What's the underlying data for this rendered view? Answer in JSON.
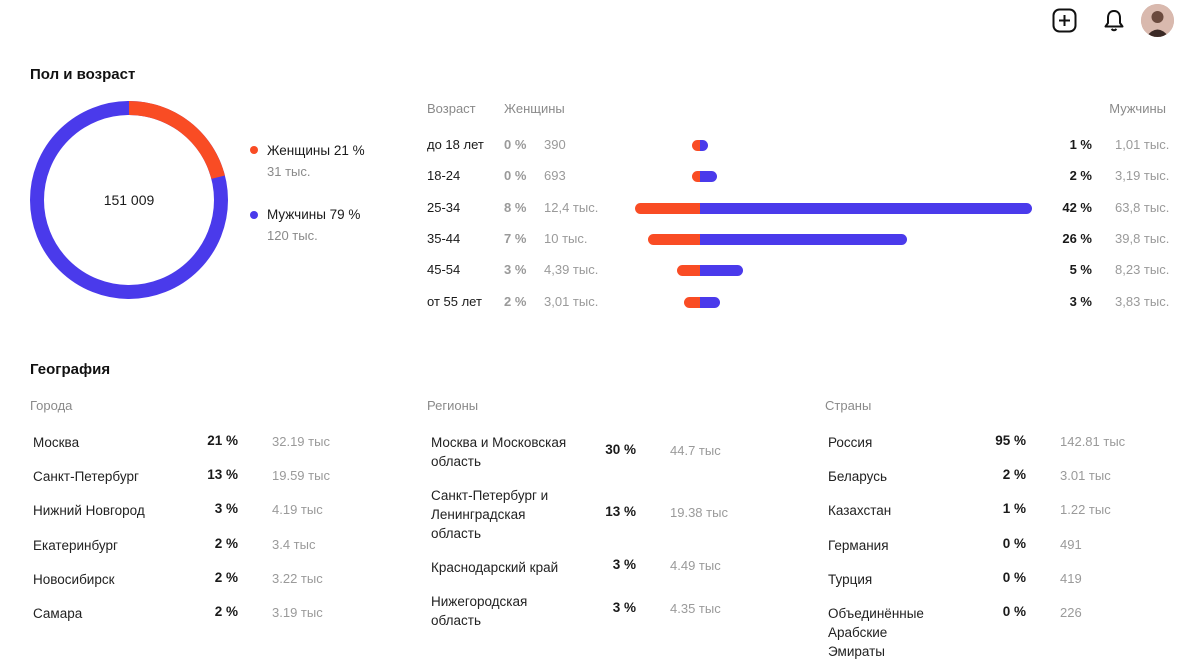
{
  "topbar": {
    "add_icon": "plus-square-icon",
    "bell_icon": "bell-icon",
    "avatar_icon": "user-avatar"
  },
  "colors": {
    "women": "#f94c24",
    "men": "#4a3aeb"
  },
  "gender_age": {
    "title": "Пол и возраст",
    "total": "151 009",
    "women_label": "Женщины 21 %",
    "women_sub": "31 тыс.",
    "men_label": "Мужчины 79 %",
    "men_sub": "120 тыс.",
    "women_fraction": 0.21,
    "headers": {
      "age": "Возраст",
      "women": "Женщины",
      "men": "Мужчины"
    },
    "rows": [
      {
        "age": "до 18 лет",
        "w_pct": "0 %",
        "w_abs": "390",
        "m_pct": "1 %",
        "m_abs": "1,01 тыс.",
        "w_val": 390,
        "m_val": 1010
      },
      {
        "age": "18-24",
        "w_pct": "0 %",
        "w_abs": "693",
        "m_pct": "2 %",
        "m_abs": "3,19 тыс.",
        "w_val": 693,
        "m_val": 3190
      },
      {
        "age": "25-34",
        "w_pct": "8 %",
        "w_abs": "12,4 тыс.",
        "m_pct": "42 %",
        "m_abs": "63,8 тыс.",
        "w_val": 12400,
        "m_val": 63800
      },
      {
        "age": "35-44",
        "w_pct": "7 %",
        "w_abs": "10 тыс.",
        "m_pct": "26 %",
        "m_abs": "39,8 тыс.",
        "w_val": 10000,
        "m_val": 39800
      },
      {
        "age": "45-54",
        "w_pct": "3 %",
        "w_abs": "4,39 тыс.",
        "m_pct": "5 %",
        "m_abs": "8,23 тыс.",
        "w_val": 4390,
        "m_val": 8230
      },
      {
        "age": "от 55 лет",
        "w_pct": "2 %",
        "w_abs": "3,01 тыс.",
        "m_pct": "3 %",
        "m_abs": "3,83 тыс.",
        "w_val": 3010,
        "m_val": 3830
      }
    ]
  },
  "geo": {
    "title": "География",
    "cities": {
      "label": "Города",
      "rows": [
        {
          "name": "Москва",
          "pct": "21 %",
          "abs": "32.19 тыс"
        },
        {
          "name": "Санкт-Петербург",
          "pct": "13 %",
          "abs": "19.59 тыс"
        },
        {
          "name": "Нижний Новгород",
          "pct": "3 %",
          "abs": "4.19 тыс"
        },
        {
          "name": "Екатеринбург",
          "pct": "2 %",
          "abs": "3.4 тыс"
        },
        {
          "name": "Новосибирск",
          "pct": "2 %",
          "abs": "3.22 тыс"
        },
        {
          "name": "Самара",
          "pct": "2 %",
          "abs": "3.19 тыс"
        }
      ]
    },
    "regions": {
      "label": "Регионы",
      "rows": [
        {
          "name": "Москва и Московская область",
          "pct": "30 %",
          "abs": "44.7 тыс"
        },
        {
          "name": "Санкт-Петербург и Ленинградская область",
          "pct": "13 %",
          "abs": "19.38 тыс"
        },
        {
          "name": "Краснодарский край",
          "pct": "3 %",
          "abs": "4.49 тыс"
        },
        {
          "name": "Нижегородская область",
          "pct": "3 %",
          "abs": "4.35 тыс"
        }
      ]
    },
    "countries": {
      "label": "Страны",
      "rows": [
        {
          "name": "Россия",
          "pct": "95 %",
          "abs": "142.81 тыс"
        },
        {
          "name": "Беларусь",
          "pct": "2 %",
          "abs": "3.01 тыс"
        },
        {
          "name": "Казахстан",
          "pct": "1 %",
          "abs": "1.22 тыс"
        },
        {
          "name": "Германия",
          "pct": "0 %",
          "abs": "491"
        },
        {
          "name": "Турция",
          "pct": "0 %",
          "abs": "419"
        },
        {
          "name": "Объединённые Арабские Эмираты",
          "pct": "0 %",
          "abs": "226"
        }
      ]
    }
  }
}
